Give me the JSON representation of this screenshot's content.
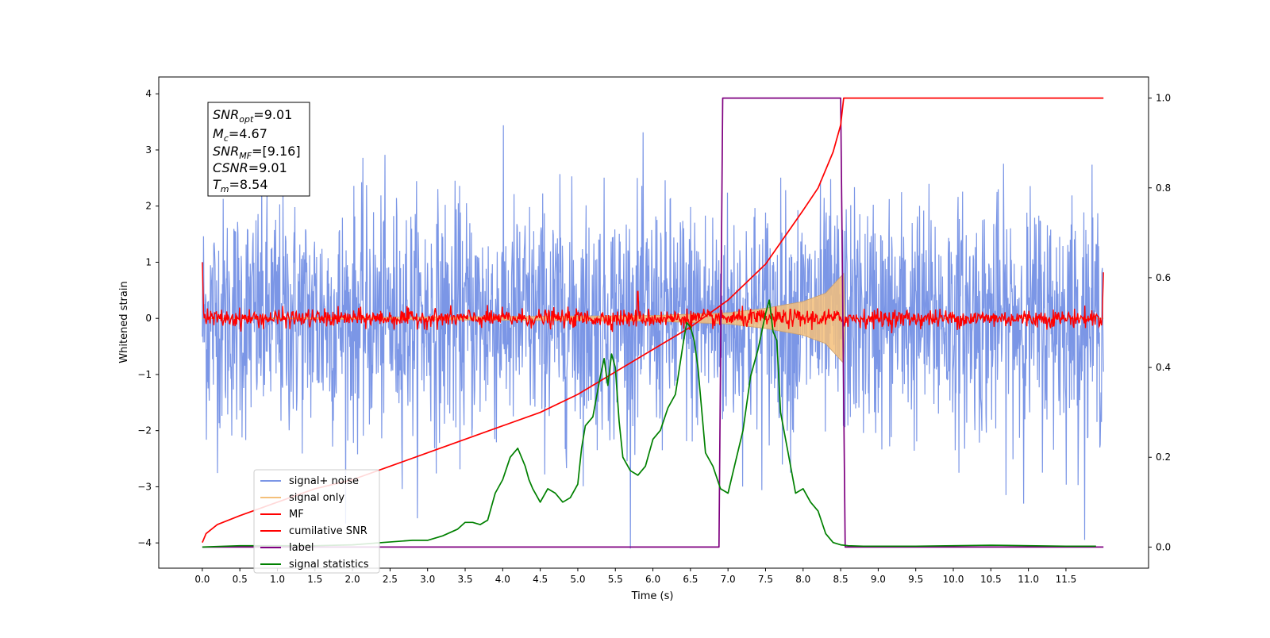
{
  "chart_data": {
    "type": "line",
    "xlabel": "Time (s)",
    "ylabel": "Whitened strain",
    "xlim": [
      -0.58,
      12.6
    ],
    "ylim": [
      -4.45,
      4.3
    ],
    "y2lim": [
      -0.047,
      1.047
    ],
    "xticks": [
      0.0,
      0.5,
      1.0,
      1.5,
      2.0,
      2.5,
      3.0,
      3.5,
      4.0,
      4.5,
      5.0,
      5.5,
      6.0,
      6.5,
      7.0,
      7.5,
      8.0,
      8.5,
      9.0,
      9.5,
      10.0,
      10.5,
      11.0,
      11.5
    ],
    "xtick_labels": [
      "0.0",
      "0.5",
      "1.0",
      "1.5",
      "2.0",
      "2.5",
      "3.0",
      "3.5",
      "4.0",
      "4.5",
      "5.0",
      "5.5",
      "6.0",
      "6.5",
      "7.0",
      "7.5",
      "8.0",
      "8.5",
      "9.0",
      "9.5",
      "10.0",
      "10.5",
      "11.0",
      "11.5"
    ],
    "yticks": [
      -4,
      -3,
      -2,
      -1,
      0,
      1,
      2,
      3,
      4
    ],
    "ytick_labels": [
      "−4",
      "−3",
      "−2",
      "−1",
      "0",
      "1",
      "2",
      "3",
      "4"
    ],
    "y2ticks": [
      0.0,
      0.2,
      0.4,
      0.6,
      0.8,
      1.0
    ],
    "y2tick_labels": [
      "0.0",
      "0.2",
      "0.4",
      "0.6",
      "0.8",
      "1.0"
    ],
    "info_box": {
      "snr_opt": "=9.01",
      "mc": "=4.67",
      "snr_mf": "=[9.16]",
      "csnr": "=9.01",
      "tm": "=8.54"
    },
    "series": [
      {
        "name": "signal+ noise",
        "color": "#7b96e6",
        "axis": "left",
        "description": "whitened noise + signal, approx. gaussian with peaks up to about ±4 over 0–12 s",
        "x_range": [
          0.0,
          12.0
        ],
        "amplitude_envelope": [
          -4.1,
          3.95
        ]
      },
      {
        "name": "signal only",
        "color": "#f4c07a",
        "axis": "left",
        "x": [
          0.0,
          6.0,
          7.0,
          7.5,
          8.0,
          8.3,
          8.54,
          8.56,
          12.0
        ],
        "envelope": [
          0.0,
          0.05,
          0.1,
          0.18,
          0.3,
          0.45,
          0.8,
          0.0,
          0.0
        ]
      },
      {
        "name": "MF",
        "color": "#ff0000",
        "axis": "left",
        "description": "matched filter output, near 0 with amplitude ~0.15, edge spikes at 0 and 12 s",
        "x_range": [
          0.0,
          12.0
        ]
      },
      {
        "name": "cumilative SNR",
        "color": "#ff0000",
        "axis": "right",
        "x": [
          0.0,
          0.05,
          0.2,
          0.5,
          1.0,
          1.5,
          2.0,
          2.5,
          3.0,
          3.5,
          4.0,
          4.5,
          5.0,
          5.5,
          6.0,
          6.5,
          7.0,
          7.5,
          8.0,
          8.2,
          8.4,
          8.5,
          8.54,
          8.6,
          12.0
        ],
        "y": [
          0.01,
          0.03,
          0.05,
          0.07,
          0.1,
          0.13,
          0.15,
          0.18,
          0.21,
          0.24,
          0.27,
          0.3,
          0.34,
          0.39,
          0.44,
          0.49,
          0.55,
          0.63,
          0.75,
          0.8,
          0.88,
          0.94,
          1.0,
          1.0,
          1.0
        ]
      },
      {
        "name": "label",
        "color": "#7f0080",
        "axis": "right",
        "x": [
          0.0,
          6.88,
          6.93,
          8.5,
          8.56,
          12.0
        ],
        "y": [
          0.0,
          0.0,
          1.0,
          1.0,
          0.0,
          0.0
        ]
      },
      {
        "name": "signal statistics",
        "color": "#008000",
        "axis": "right",
        "x": [
          0.0,
          0.5,
          1.0,
          1.5,
          2.0,
          2.4,
          2.8,
          3.0,
          3.2,
          3.4,
          3.5,
          3.6,
          3.7,
          3.8,
          3.9,
          4.0,
          4.1,
          4.15,
          4.2,
          4.25,
          4.3,
          4.35,
          4.4,
          4.5,
          4.6,
          4.7,
          4.8,
          4.9,
          5.0,
          5.05,
          5.1,
          5.2,
          5.3,
          5.35,
          5.4,
          5.45,
          5.5,
          5.55,
          5.6,
          5.7,
          5.8,
          5.9,
          6.0,
          6.1,
          6.2,
          6.3,
          6.4,
          6.45,
          6.5,
          6.55,
          6.6,
          6.7,
          6.8,
          6.9,
          7.0,
          7.1,
          7.2,
          7.3,
          7.4,
          7.5,
          7.55,
          7.6,
          7.65,
          7.7,
          7.8,
          7.9,
          8.0,
          8.1,
          8.2,
          8.3,
          8.4,
          8.5,
          8.6,
          8.8,
          9.0,
          9.5,
          10.0,
          10.5,
          11.0,
          11.5,
          11.9
        ],
        "y": [
          0.0,
          0.003,
          0.003,
          0.003,
          0.005,
          0.01,
          0.015,
          0.015,
          0.025,
          0.04,
          0.055,
          0.055,
          0.05,
          0.06,
          0.12,
          0.15,
          0.2,
          0.21,
          0.22,
          0.2,
          0.18,
          0.15,
          0.13,
          0.1,
          0.13,
          0.12,
          0.1,
          0.11,
          0.14,
          0.22,
          0.27,
          0.29,
          0.38,
          0.42,
          0.36,
          0.43,
          0.4,
          0.28,
          0.2,
          0.17,
          0.16,
          0.18,
          0.24,
          0.26,
          0.31,
          0.34,
          0.45,
          0.5,
          0.49,
          0.46,
          0.4,
          0.21,
          0.18,
          0.13,
          0.12,
          0.19,
          0.26,
          0.38,
          0.44,
          0.52,
          0.55,
          0.48,
          0.46,
          0.3,
          0.21,
          0.12,
          0.13,
          0.1,
          0.08,
          0.03,
          0.01,
          0.005,
          0.003,
          0.002,
          0.002,
          0.002,
          0.003,
          0.004,
          0.003,
          0.002,
          0.002
        ]
      }
    ],
    "legend": {
      "placement": "lower-left",
      "entries": [
        "signal+ noise",
        "signal only",
        "MF",
        "cumilative SNR",
        "label",
        "signal statistics"
      ]
    },
    "grid": false
  }
}
